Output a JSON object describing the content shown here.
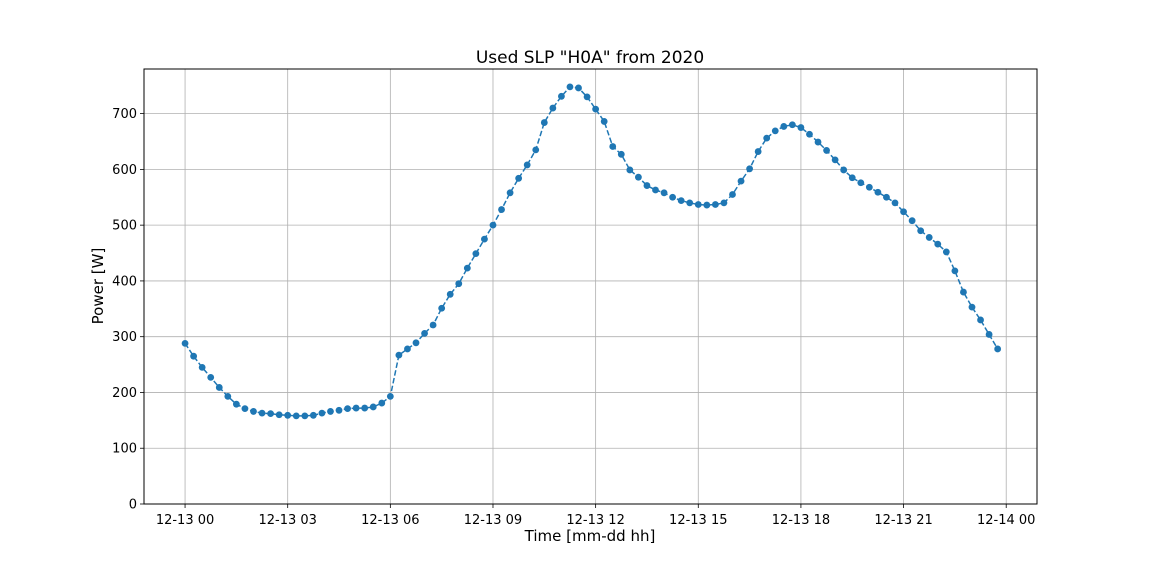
{
  "chart_data": {
    "type": "line",
    "title": "Used SLP \"H0A\" from 2020",
    "xlabel": "Time [mm-dd hh]",
    "ylabel": "Power [W]",
    "x_unit": "hours",
    "x_tick_values": [
      0,
      3,
      6,
      9,
      12,
      15,
      18,
      21,
      24
    ],
    "x_tick_labels": [
      "12-13 00",
      "12-13 03",
      "12-13 06",
      "12-13 09",
      "12-13 12",
      "12-13 15",
      "12-13 18",
      "12-13 21",
      "12-14 00"
    ],
    "xlim": [
      -1.2,
      24.9
    ],
    "ylim": [
      0,
      780
    ],
    "y_ticks": [
      0,
      100,
      200,
      300,
      400,
      500,
      600,
      700
    ],
    "grid": true,
    "series": [
      {
        "color": "#1f77b4",
        "line_style": "dashed",
        "marker": "circle",
        "x_step": 0.25,
        "x_start": 0,
        "values": [
          288,
          265,
          245,
          227,
          209,
          193,
          179,
          171,
          166,
          163,
          162,
          160,
          159,
          158,
          158,
          159,
          163,
          166,
          168,
          171,
          172,
          172,
          174,
          181,
          193,
          267,
          278,
          289,
          306,
          321,
          351,
          376,
          395,
          423,
          449,
          475,
          500,
          528,
          558,
          584,
          608,
          635,
          684,
          710,
          731,
          748,
          746,
          730,
          708,
          686,
          641,
          627,
          599,
          586,
          571,
          563,
          558,
          550,
          544,
          540,
          537,
          536,
          537,
          540,
          555,
          579,
          601,
          632,
          656,
          669,
          677,
          680,
          675,
          663,
          649,
          634,
          617,
          599,
          585,
          576,
          568,
          559,
          550,
          540,
          524,
          508,
          490,
          478,
          466,
          452,
          418,
          380,
          353,
          330,
          304,
          278
        ]
      }
    ]
  }
}
